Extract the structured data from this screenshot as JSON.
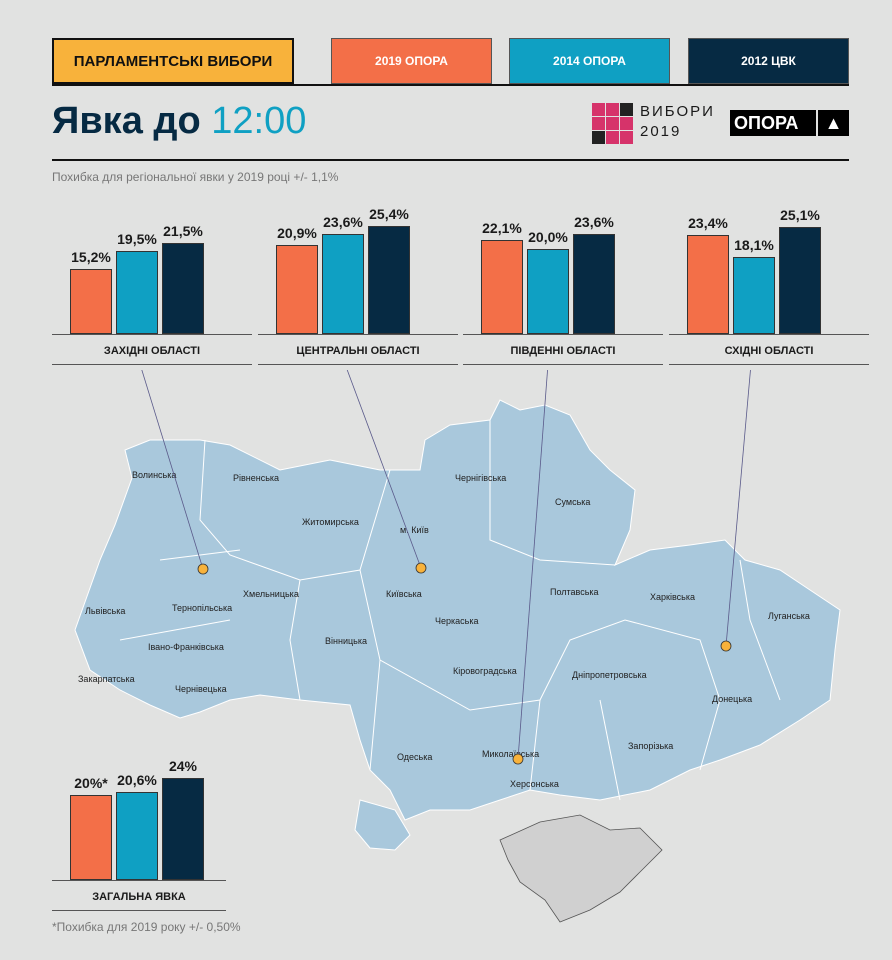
{
  "header": {
    "title_button": "ПАРЛАМЕНТСЬКІ ВИБОРИ",
    "headline_prefix": "Явка до",
    "headline_time": "12:00",
    "logo_vybory_line1": "ВИБОРИ",
    "logo_vybory_line2": "2019",
    "logo_opora": "ОПОРА"
  },
  "legend": [
    {
      "label": "2019 ОПОРА",
      "color": "#f36f48"
    },
    {
      "label": "2014 ОПОРА",
      "color": "#0fa0c3"
    },
    {
      "label": "2012 ЦВК",
      "color": "#062a43"
    }
  ],
  "regional_note": "Похибка для регіональної явки у 2019 році +/- 1,1%",
  "footnote": "*Похибка для 2019  року +/- 0,50%",
  "chart_data": {
    "type": "bar",
    "series_names": [
      "2019 ОПОРА",
      "2014 ОПОРА",
      "2012 ЦВК"
    ],
    "unit": "%",
    "groups": [
      {
        "label": "ЗАХІДНІ ОБЛАСТІ",
        "values": [
          15.2,
          19.5,
          21.5
        ],
        "labels": [
          "15,2%",
          "19,5%",
          "21,5%"
        ]
      },
      {
        "label": "ЦЕНТРАЛЬНІ ОБЛАСТІ",
        "values": [
          20.9,
          23.6,
          25.4
        ],
        "labels": [
          "20,9%",
          "23,6%",
          "25,4%"
        ]
      },
      {
        "label": "ПІВДЕННІ ОБЛАСТІ",
        "values": [
          22.1,
          20.0,
          23.6
        ],
        "labels": [
          "22,1%",
          "20,0%",
          "23,6%"
        ]
      },
      {
        "label": "СХІДНІ ОБЛАСТІ",
        "values": [
          23.4,
          18.1,
          25.1
        ],
        "labels": [
          "23,4%",
          "18,1%",
          "25,1%"
        ]
      },
      {
        "label": "ЗАГАЛЬНА ЯВКА",
        "values": [
          20,
          20.6,
          24
        ],
        "labels": [
          "20%*",
          "20,6%",
          "24%"
        ]
      }
    ]
  },
  "map": {
    "regions": [
      "Волинська",
      "Рівненська",
      "Житомирська",
      "Чернігівська",
      "Сумська",
      "м. Київ",
      "Львівська",
      "Хмельницька",
      "Тернопільська",
      "Київська",
      "Полтавська",
      "Харківська",
      "Луганська",
      "Черкаська",
      "Вінницька",
      "Івано-Франківська",
      "Закарпатська",
      "Чернівецька",
      "Кіровоградська",
      "Дніпропетровська",
      "Донецька",
      "Одеська",
      "Миколаївська",
      "Запорізька",
      "Херсонська"
    ]
  }
}
